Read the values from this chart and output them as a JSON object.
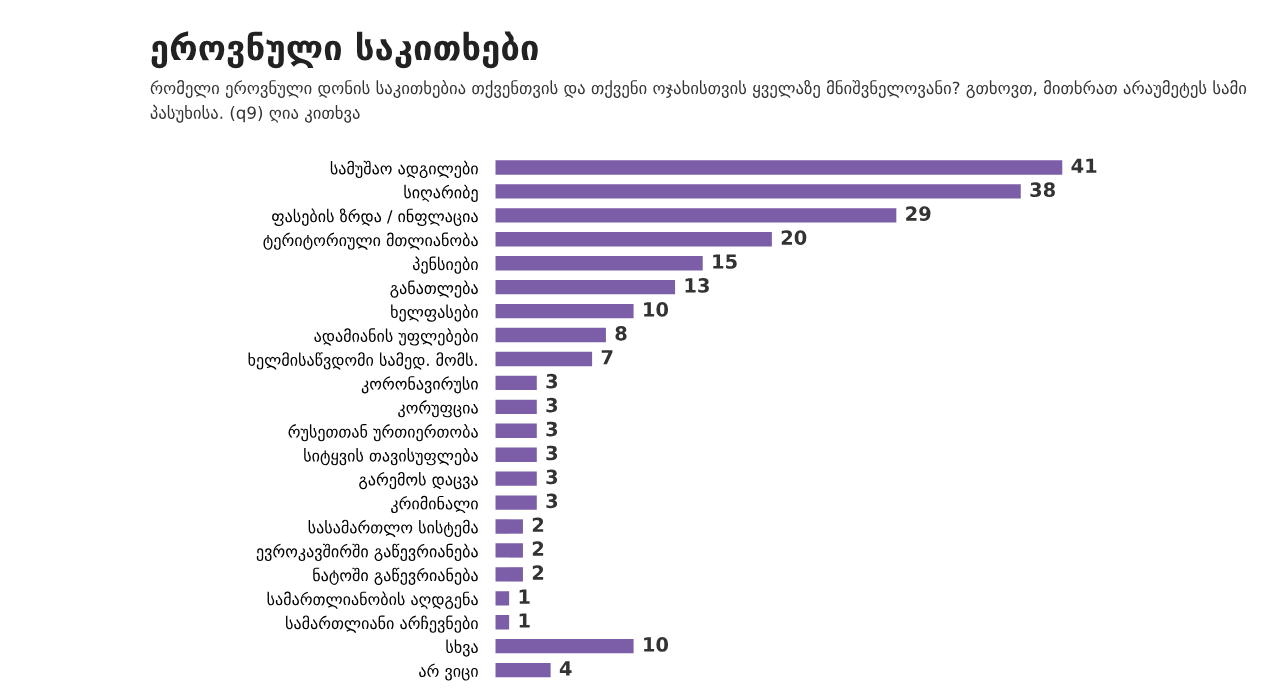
{
  "chart_data": {
    "type": "bar",
    "orientation": "horizontal",
    "title": "ეროვნული საკითხები",
    "subtitle": "რომელი ეროვნული დონის საკითხებია თქვენთვის და თქვენი ოჯახისთვის ყველაზე მნიშვნელოვანი? გთხოვთ, მითხრათ არაუმეტეს სამი პასუხისა. (q9) ღია კითხვა",
    "categories": [
      "სამუშაო ადგილები",
      "სიღარიბე",
      "ფასების ზრდა / ინფლაცია",
      "ტერიტორიული მთლიანობა",
      "პენსიები",
      "განათლება",
      "ხელფასები",
      "ადამიანის უფლებები",
      "ხელმისაწვდომი სამედ. მომს.",
      "კორონავირუსი",
      "კორუფცია",
      "რუსეთთან ურთიერთობა",
      "სიტყვის თავისუფლება",
      "გარემოს დაცვა",
      "კრიმინალი",
      "სასამართლო სისტემა",
      "ევროკავშირში გაწევრიანება",
      "ნატოში გაწევრიანება",
      "სამართლიანობის აღდგენა",
      "სამართლიანი არჩევნები",
      "სხვა",
      "არ ვიცი"
    ],
    "values": [
      41,
      38,
      29,
      20,
      15,
      13,
      10,
      8,
      7,
      3,
      3,
      3,
      3,
      3,
      3,
      2,
      2,
      2,
      1,
      1,
      10,
      4
    ],
    "color": "#7b5ea7",
    "data_labels": true
  }
}
